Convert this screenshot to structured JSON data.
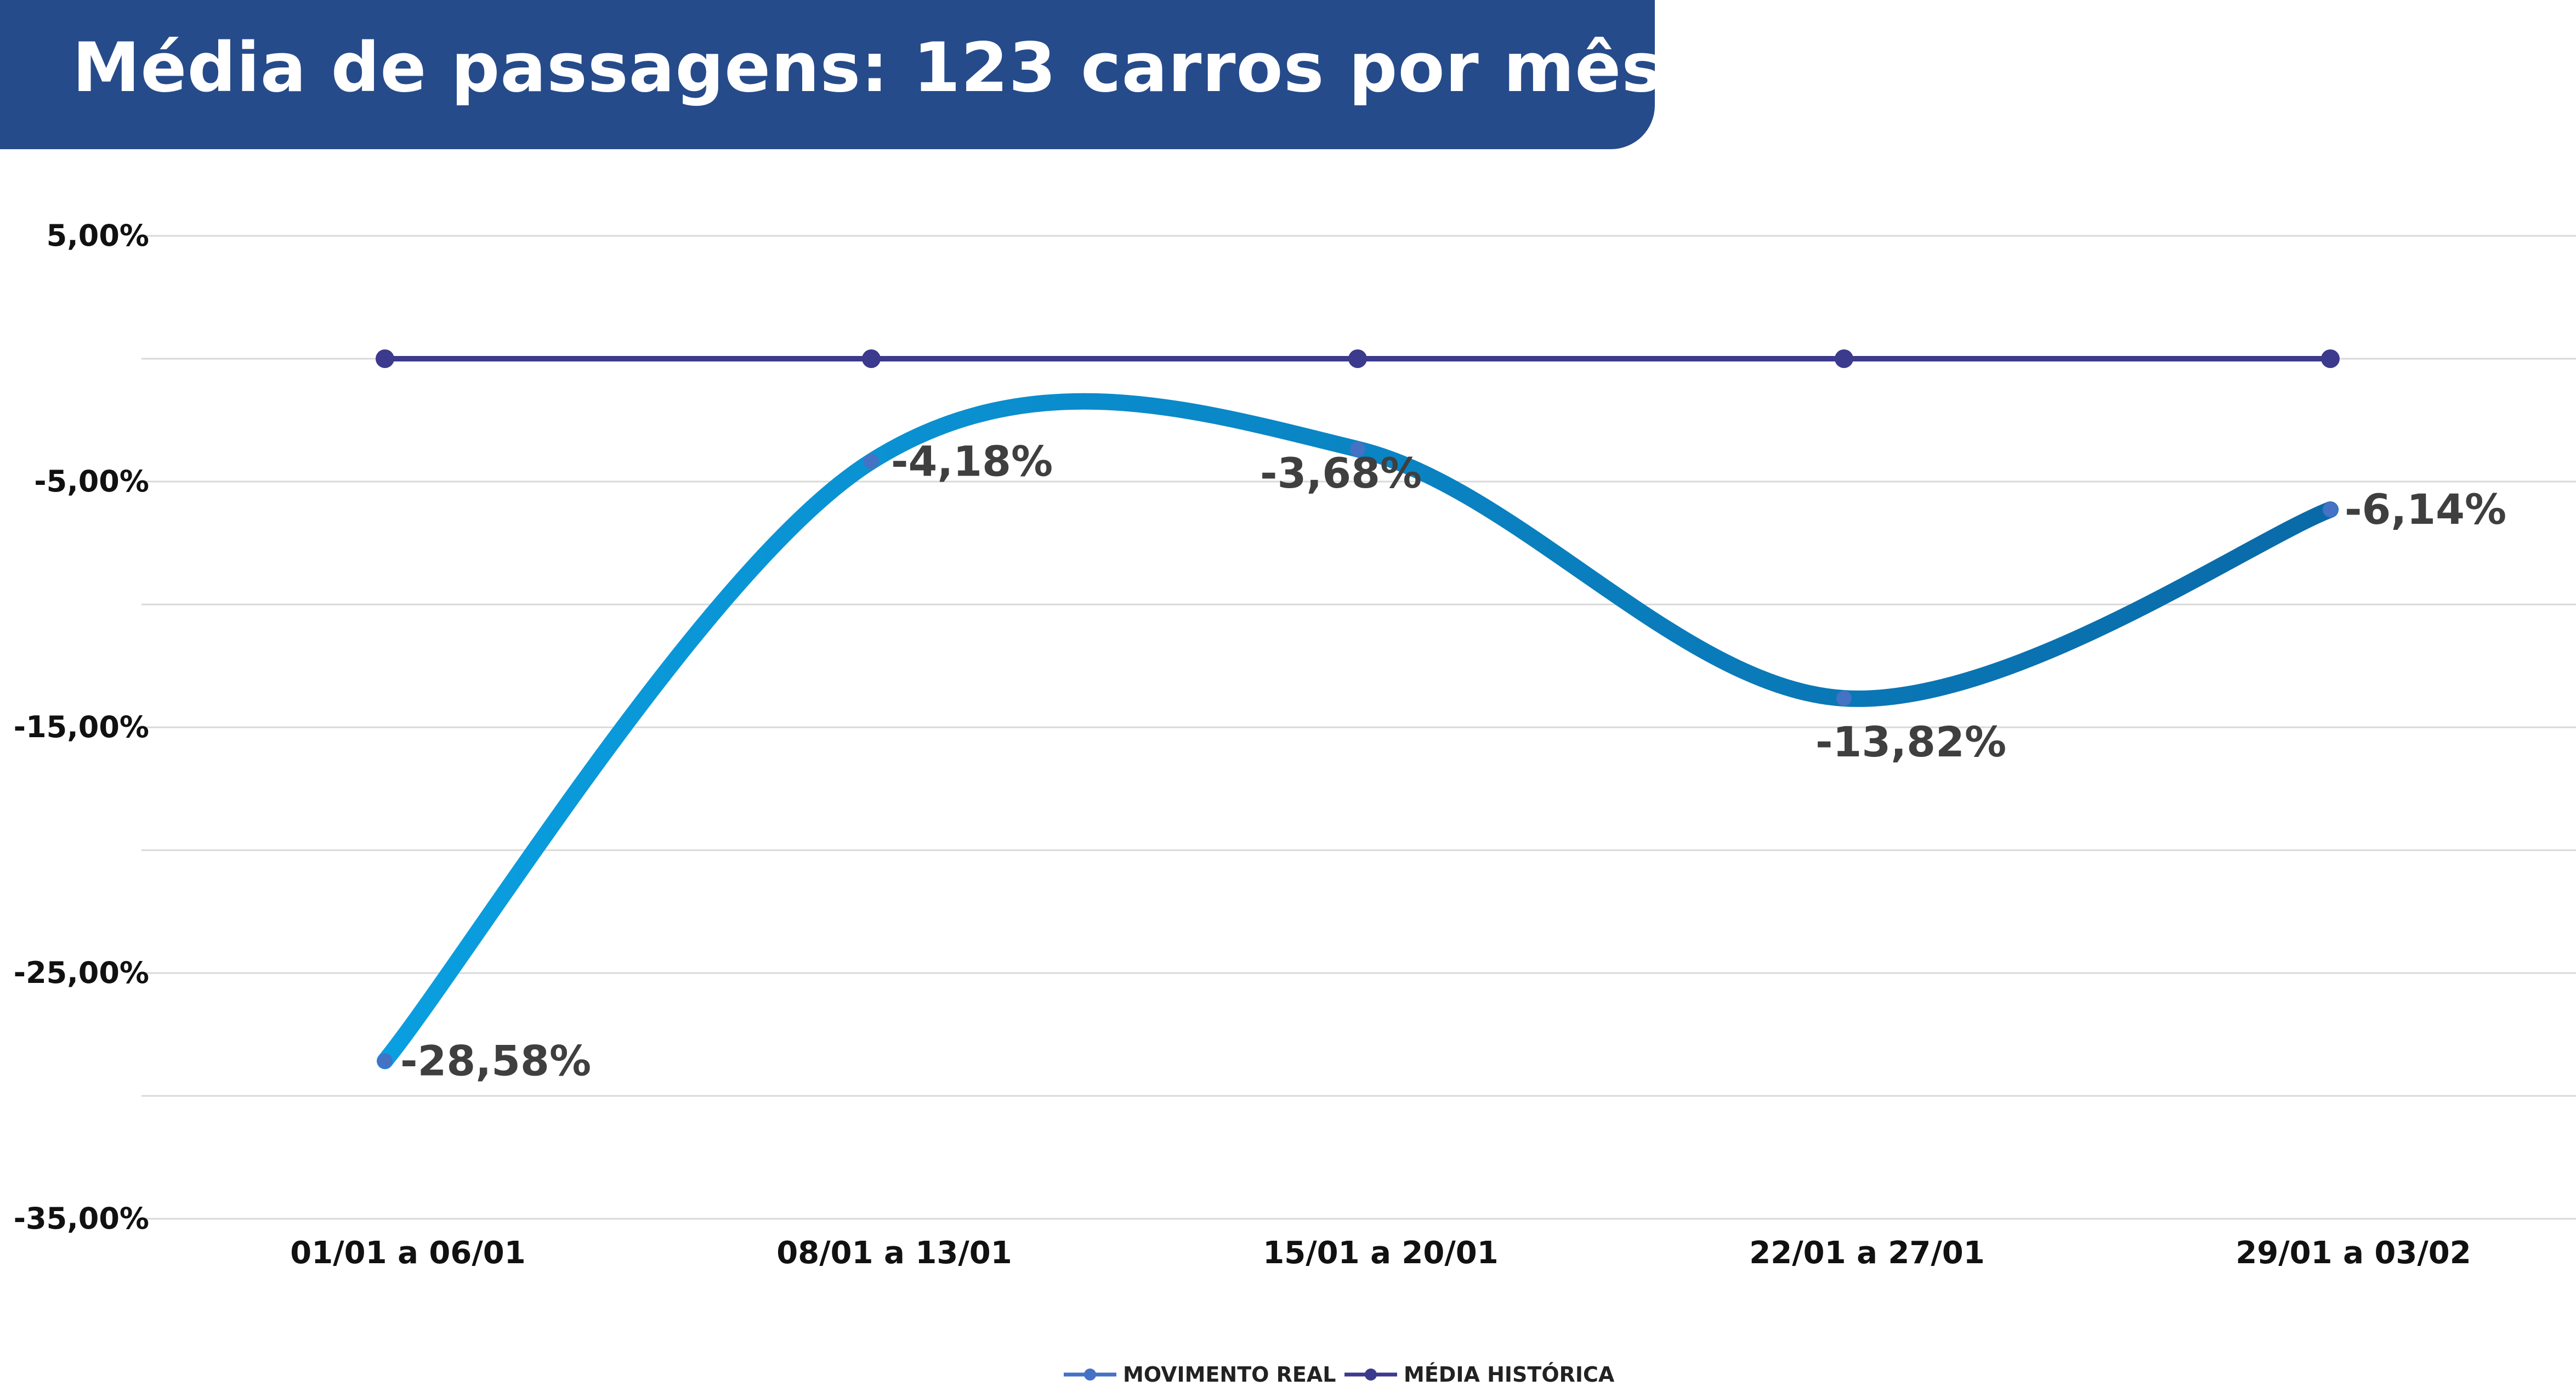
{
  "title": "Média de passagens: 123 carros por mês",
  "colors": {
    "title_bg": "#264b8b",
    "real_line_start": "#0a9fe0",
    "real_line_end": "#0a6aa8",
    "real_marker": "#4472c4",
    "hist_line": "#3c3a8c",
    "grid": "#d9d9d9"
  },
  "chart_data": {
    "type": "line",
    "categories": [
      "01/01 a 06/01",
      "08/01 a 13/01",
      "15/01 a 20/01",
      "22/01 a 27/01",
      "29/01 a 03/02"
    ],
    "series": [
      {
        "name": "MOVIMENTO REAL",
        "values": [
          -28.58,
          -4.18,
          -3.68,
          -13.82,
          -6.14
        ],
        "data_labels": [
          "-28,58%",
          "-4,18%",
          "-3,68%",
          "-13,82%",
          "-6,14%"
        ]
      },
      {
        "name": "MÉDIA HISTÓRICA",
        "values": [
          0,
          0,
          0,
          0,
          0
        ]
      }
    ],
    "y_ticks": [
      5,
      -5,
      -15,
      -25,
      -35
    ],
    "y_tick_labels": [
      "5,00%",
      "-5,00%",
      "-15,00%",
      "-25,00%",
      "-35,00%"
    ],
    "ylim": [
      -35,
      5
    ],
    "grid": true,
    "legend": "bottom"
  }
}
